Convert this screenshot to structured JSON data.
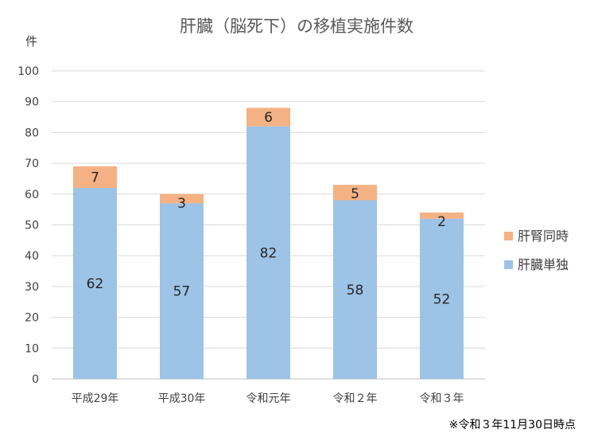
{
  "chart_data": {
    "type": "bar",
    "stacked": true,
    "title": "肝臓（脳死下）の移植実施件数",
    "ylabel": "件",
    "ylim": [
      0,
      100
    ],
    "yticks": [
      0,
      10,
      20,
      30,
      40,
      50,
      60,
      70,
      80,
      90,
      100
    ],
    "grid": true,
    "legend": "right",
    "categories": [
      "平成29年",
      "平成30年",
      "令和元年",
      "令和２年",
      "令和３年"
    ],
    "series": [
      {
        "name": "肝臓単独",
        "color": "#9DC3E6",
        "values": [
          62,
          57,
          82,
          58,
          52
        ]
      },
      {
        "name": "肝腎同時",
        "color": "#F4B183",
        "values": [
          7,
          3,
          6,
          5,
          2
        ]
      }
    ],
    "footnote": "※令和３年11月30日時点"
  }
}
